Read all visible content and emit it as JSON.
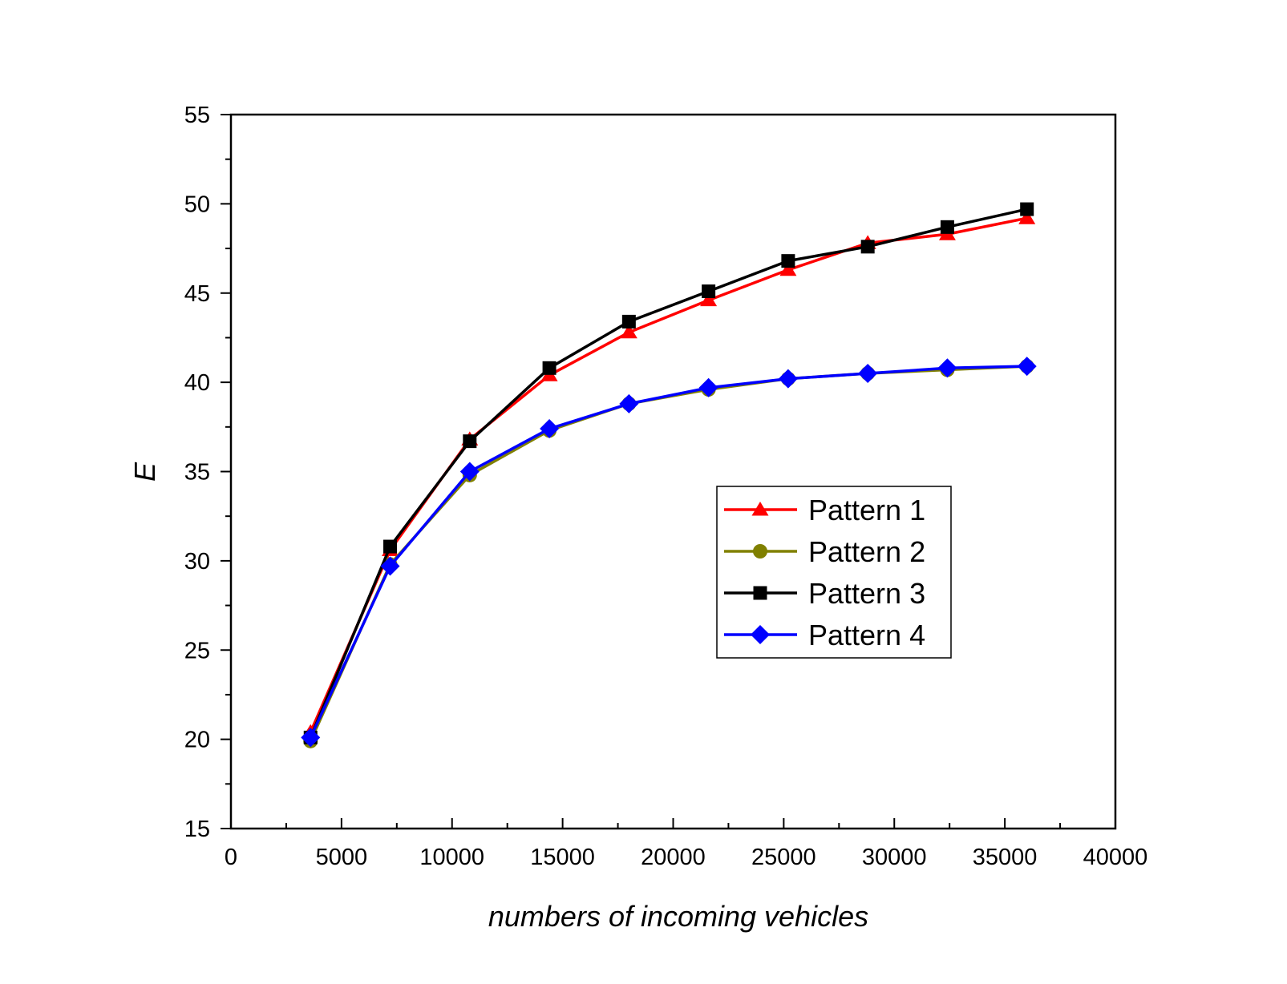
{
  "chart_data": {
    "type": "line",
    "xlabel": "numbers of incoming vehicles",
    "ylabel": "E",
    "xlim": [
      0,
      40000
    ],
    "ylim": [
      15,
      55
    ],
    "xticks": [
      0,
      5000,
      10000,
      15000,
      20000,
      25000,
      30000,
      35000,
      40000
    ],
    "yticks": [
      15,
      20,
      25,
      30,
      35,
      40,
      45,
      50,
      55
    ],
    "grid": false,
    "legend_position": "center-right",
    "x": [
      3600,
      7200,
      10800,
      14400,
      18000,
      21600,
      25200,
      28800,
      32400,
      36000
    ],
    "series": [
      {
        "name": "Pattern 1",
        "color": "#ff0000",
        "marker": "triangle",
        "values": [
          20.4,
          30.6,
          36.8,
          40.4,
          42.8,
          44.6,
          46.3,
          47.8,
          48.3,
          49.2
        ]
      },
      {
        "name": "Pattern 2",
        "color": "#808000",
        "marker": "circle",
        "values": [
          19.9,
          29.8,
          34.8,
          37.3,
          38.8,
          39.6,
          40.2,
          40.5,
          40.7,
          40.9
        ]
      },
      {
        "name": "Pattern 3",
        "color": "#000000",
        "marker": "square",
        "values": [
          20.1,
          30.8,
          36.7,
          40.8,
          43.4,
          45.1,
          46.8,
          47.6,
          48.7,
          49.7
        ]
      },
      {
        "name": "Pattern 4",
        "color": "#0000ff",
        "marker": "diamond",
        "values": [
          20.1,
          29.7,
          35.0,
          37.4,
          38.8,
          39.7,
          40.2,
          40.5,
          40.8,
          40.9
        ]
      }
    ]
  }
}
